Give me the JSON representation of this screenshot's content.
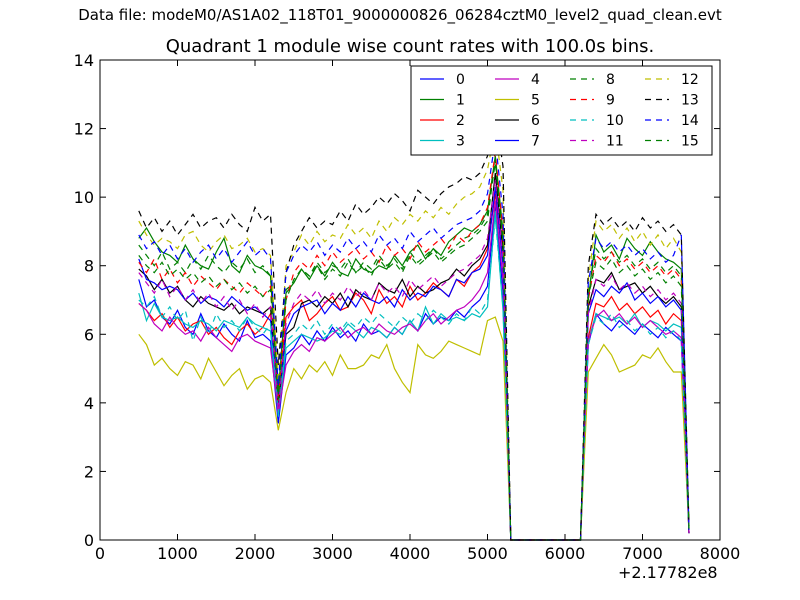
{
  "suptitle": "Data file: modeM0/AS1A02_118T01_9000000826_06284cztM0_level2_quad_clean.evt",
  "chart_data": {
    "type": "line",
    "title": "Quadrant 1 module wise count rates with 100.0s bins.",
    "xlabel": "",
    "ylabel": "",
    "x_offset_label": "+2.17782e8",
    "xlim": [
      0,
      8000
    ],
    "ylim": [
      0,
      14
    ],
    "x_ticks": [
      0,
      1000,
      2000,
      3000,
      4000,
      5000,
      6000,
      7000,
      8000
    ],
    "y_ticks": [
      0,
      2,
      4,
      6,
      8,
      10,
      12,
      14
    ],
    "grid": false,
    "legend_position": "top-right",
    "legend_columns": 4,
    "x": [
      500,
      600,
      700,
      800,
      900,
      1000,
      1100,
      1200,
      1300,
      1400,
      1500,
      1600,
      1700,
      1800,
      1900,
      2000,
      2100,
      2200,
      2300,
      2400,
      2500,
      2600,
      2700,
      2800,
      2900,
      3000,
      3100,
      3200,
      3300,
      3400,
      3500,
      3600,
      3700,
      3800,
      3900,
      4000,
      4100,
      4200,
      4300,
      4400,
      4500,
      4600,
      4700,
      4800,
      4900,
      5000,
      5100,
      5200,
      5300,
      6200,
      6300,
      6400,
      6500,
      6600,
      6700,
      6800,
      6900,
      7000,
      7100,
      7200,
      7300,
      7400,
      7500,
      7600
    ],
    "series": [
      {
        "name": "0",
        "color": "#0000ff",
        "dash": "solid",
        "values": [
          7.6,
          6.8,
          7.0,
          6.5,
          6.3,
          6.7,
          6.2,
          6.0,
          6.6,
          6.1,
          5.9,
          6.3,
          6.0,
          5.8,
          6.4,
          5.9,
          6.0,
          5.8,
          3.4,
          5.4,
          5.6,
          6.0,
          5.7,
          6.1,
          5.8,
          6.2,
          5.9,
          6.1,
          5.8,
          6.3,
          6.0,
          6.1,
          5.9,
          6.2,
          6.0,
          6.4,
          6.1,
          6.6,
          6.3,
          6.5,
          6.4,
          6.7,
          6.5,
          6.8,
          7.0,
          7.4,
          9.8,
          7.2,
          0,
          0,
          5.7,
          6.6,
          6.3,
          6.1,
          6.4,
          6.2,
          6.0,
          6.3,
          6.1,
          5.9,
          6.2,
          6.0,
          5.8,
          0.2
        ]
      },
      {
        "name": "1",
        "color": "#008000",
        "dash": "solid",
        "values": [
          8.8,
          9.1,
          8.7,
          8.4,
          8.3,
          8.1,
          8.6,
          8.2,
          8.0,
          7.9,
          8.4,
          8.8,
          8.0,
          7.8,
          8.3,
          8.0,
          7.9,
          7.7,
          4.3,
          7.2,
          7.5,
          7.9,
          7.6,
          8.0,
          7.7,
          8.1,
          7.8,
          7.7,
          8.2,
          7.9,
          7.8,
          8.0,
          7.9,
          8.3,
          8.0,
          8.4,
          8.6,
          8.2,
          8.5,
          8.3,
          8.7,
          8.9,
          9.1,
          9.0,
          9.2,
          9.6,
          11.2,
          9.0,
          0,
          0,
          7.0,
          8.9,
          8.4,
          8.6,
          8.2,
          8.8,
          8.5,
          8.3,
          8.7,
          8.4,
          8.2,
          8.1,
          7.9,
          0.3
        ]
      },
      {
        "name": "2",
        "color": "#ff0000",
        "dash": "solid",
        "values": [
          6.9,
          6.7,
          6.4,
          6.6,
          6.2,
          6.5,
          6.1,
          6.3,
          6.4,
          6.0,
          6.2,
          5.9,
          5.7,
          6.1,
          6.3,
          6.0,
          6.2,
          6.6,
          3.9,
          6.5,
          6.8,
          7.0,
          6.4,
          6.6,
          6.9,
          7.1,
          6.7,
          6.8,
          7.2,
          7.0,
          6.6,
          7.3,
          6.9,
          7.1,
          6.8,
          7.4,
          7.0,
          7.2,
          7.5,
          7.3,
          7.1,
          7.6,
          7.4,
          7.8,
          8.0,
          8.5,
          10.1,
          8.1,
          0,
          0,
          5.9,
          6.9,
          6.8,
          7.1,
          6.7,
          6.9,
          6.6,
          6.8,
          6.5,
          6.7,
          6.3,
          6.6,
          6.4,
          0.2
        ]
      },
      {
        "name": "3",
        "color": "#00bfbf",
        "dash": "solid",
        "values": [
          7.2,
          6.4,
          6.9,
          6.5,
          6.4,
          6.5,
          6.3,
          6.2,
          6.4,
          6.3,
          6.1,
          6.4,
          6.3,
          6.2,
          6.5,
          6.3,
          6.2,
          6.1,
          3.6,
          5.6,
          5.8,
          6.0,
          5.9,
          5.8,
          5.9,
          6.1,
          6.0,
          6.3,
          6.1,
          5.9,
          6.2,
          6.1,
          5.9,
          6.2,
          6.0,
          6.4,
          6.1,
          6.8,
          6.3,
          6.6,
          6.4,
          6.5,
          6.4,
          6.6,
          6.5,
          6.8,
          9.6,
          6.7,
          0,
          0,
          5.8,
          6.6,
          6.5,
          6.4,
          6.5,
          6.3,
          6.6,
          6.2,
          6.4,
          6.3,
          6.1,
          6.3,
          6.2,
          0.2
        ]
      },
      {
        "name": "4",
        "color": "#bf00bf",
        "dash": "solid",
        "values": [
          6.9,
          6.7,
          6.3,
          6.1,
          6.5,
          6.2,
          6.0,
          6.1,
          5.8,
          6.2,
          5.9,
          5.7,
          5.5,
          5.9,
          6.0,
          5.8,
          5.7,
          5.6,
          3.7,
          5.1,
          5.5,
          5.7,
          5.5,
          5.9,
          5.8,
          6.0,
          6.2,
          5.9,
          6.1,
          6.2,
          6.0,
          6.3,
          6.1,
          6.0,
          6.2,
          6.3,
          6.1,
          6.4,
          6.6,
          6.3,
          6.5,
          6.7,
          6.8,
          7.0,
          7.3,
          7.8,
          9.9,
          7.6,
          0,
          0,
          5.8,
          6.5,
          6.7,
          6.4,
          6.6,
          6.3,
          6.5,
          6.2,
          6.4,
          6.2,
          6.0,
          6.1,
          5.9,
          0.2
        ]
      },
      {
        "name": "5",
        "color": "#bfbf00",
        "dash": "solid",
        "values": [
          6.0,
          5.7,
          5.1,
          5.3,
          5.0,
          4.8,
          5.2,
          5.1,
          4.7,
          5.3,
          4.9,
          4.5,
          4.8,
          5.0,
          4.4,
          4.7,
          4.8,
          4.6,
          3.2,
          4.3,
          5.0,
          4.7,
          5.1,
          4.9,
          5.2,
          4.8,
          5.4,
          5.0,
          5.0,
          5.1,
          5.4,
          5.3,
          5.7,
          5.0,
          4.6,
          4.3,
          5.7,
          5.4,
          5.3,
          5.5,
          5.8,
          5.7,
          5.6,
          5.5,
          5.4,
          6.4,
          6.5,
          5.8,
          0,
          0,
          4.9,
          5.3,
          5.7,
          5.4,
          4.9,
          5.0,
          5.1,
          5.4,
          5.3,
          5.6,
          5.2,
          4.9,
          4.9,
          0.2
        ]
      },
      {
        "name": "6",
        "color": "#000000",
        "dash": "solid",
        "values": [
          7.9,
          7.7,
          7.3,
          7.6,
          7.2,
          7.4,
          7.0,
          6.8,
          7.1,
          6.9,
          6.8,
          6.7,
          6.9,
          6.6,
          6.8,
          6.7,
          6.6,
          6.8,
          3.9,
          6.0,
          6.2,
          6.9,
          7.0,
          6.8,
          7.1,
          6.9,
          7.2,
          6.8,
          7.3,
          7.1,
          7.0,
          7.5,
          7.3,
          7.2,
          7.6,
          7.1,
          7.4,
          7.2,
          7.3,
          7.5,
          7.6,
          7.9,
          7.7,
          8.0,
          8.2,
          8.6,
          10.7,
          8.4,
          0,
          0,
          6.8,
          7.6,
          7.5,
          7.8,
          7.3,
          7.4,
          7.5,
          7.2,
          7.4,
          7.1,
          6.9,
          7.1,
          6.8,
          0.2
        ]
      },
      {
        "name": "7",
        "color": "#0000ff",
        "dash": "solid",
        "values": [
          8.2,
          7.6,
          7.5,
          7.3,
          7.4,
          7.3,
          7.0,
          7.2,
          6.9,
          7.1,
          7.0,
          6.8,
          7.1,
          6.9,
          6.7,
          6.8,
          6.6,
          6.4,
          4.1,
          6.1,
          6.6,
          6.8,
          6.9,
          7.0,
          6.6,
          6.9,
          6.7,
          7.1,
          6.8,
          7.2,
          7.0,
          6.9,
          7.1,
          6.8,
          7.3,
          7.0,
          7.2,
          7.1,
          7.4,
          7.3,
          7.1,
          7.6,
          7.5,
          7.8,
          7.9,
          8.3,
          10.3,
          8.0,
          0,
          0,
          6.6,
          7.3,
          7.1,
          7.4,
          7.2,
          7.5,
          7.0,
          7.2,
          6.9,
          7.1,
          6.8,
          7.0,
          6.7,
          0.2
        ]
      },
      {
        "name": "8",
        "color": "#008000",
        "dash": "dashed",
        "values": [
          8.6,
          8.3,
          8.0,
          8.4,
          7.9,
          8.1,
          7.8,
          8.2,
          7.9,
          8.3,
          8.0,
          7.8,
          8.1,
          7.9,
          8.2,
          7.8,
          8.0,
          7.7,
          4.2,
          7.3,
          7.5,
          7.9,
          7.7,
          8.1,
          7.8,
          8.0,
          7.9,
          8.2,
          7.8,
          8.1,
          7.9,
          8.3,
          8.0,
          8.2,
          7.9,
          8.4,
          8.1,
          8.3,
          8.5,
          8.2,
          8.4,
          8.6,
          8.8,
          8.9,
          9.1,
          9.5,
          11.0,
          8.8,
          0,
          0,
          7.2,
          8.5,
          8.2,
          8.4,
          8.1,
          8.3,
          8.0,
          8.2,
          7.9,
          8.1,
          7.8,
          8.0,
          7.7,
          0.3
        ]
      },
      {
        "name": "9",
        "color": "#ff0000",
        "dash": "dashed",
        "values": [
          8.1,
          7.8,
          8.2,
          7.6,
          7.9,
          7.5,
          7.8,
          7.4,
          7.7,
          7.5,
          7.3,
          7.6,
          7.4,
          7.2,
          7.5,
          7.3,
          7.1,
          7.4,
          4.0,
          7.0,
          7.8,
          8.1,
          7.9,
          8.3,
          8.0,
          8.4,
          8.1,
          8.3,
          8.5,
          8.2,
          8.4,
          8.1,
          8.6,
          8.3,
          8.5,
          8.2,
          8.7,
          8.4,
          8.6,
          8.8,
          8.5,
          8.9,
          8.7,
          9.0,
          9.2,
          9.7,
          11.3,
          9.0,
          0,
          0,
          7.0,
          8.3,
          8.1,
          8.4,
          8.0,
          8.2,
          7.9,
          8.1,
          7.8,
          8.0,
          7.7,
          7.9,
          7.6,
          0.3
        ]
      },
      {
        "name": "10",
        "color": "#00bfbf",
        "dash": "dashed",
        "values": [
          7.0,
          6.8,
          7.1,
          6.5,
          6.8,
          6.4,
          6.7,
          5.8,
          6.5,
          6.0,
          6.6,
          6.2,
          6.4,
          6.1,
          6.5,
          6.2,
          6.0,
          6.3,
          3.7,
          5.8,
          6.0,
          6.3,
          6.1,
          6.4,
          6.0,
          6.3,
          6.1,
          6.4,
          6.2,
          6.5,
          6.3,
          6.6,
          6.4,
          6.2,
          6.5,
          6.3,
          6.6,
          6.4,
          6.7,
          6.5,
          6.3,
          6.6,
          6.4,
          6.8,
          6.6,
          7.0,
          9.4,
          6.8,
          0,
          0,
          5.7,
          6.5,
          6.3,
          6.6,
          6.2,
          6.4,
          6.1,
          6.3,
          6.0,
          6.2,
          5.9,
          6.1,
          5.8,
          0.2
        ]
      },
      {
        "name": "11",
        "color": "#bf00bf",
        "dash": "dashed",
        "values": [
          7.8,
          7.5,
          7.2,
          7.6,
          7.1,
          7.4,
          7.0,
          7.3,
          6.9,
          7.2,
          6.8,
          7.1,
          6.7,
          7.0,
          6.6,
          6.9,
          6.5,
          6.8,
          3.8,
          6.3,
          6.9,
          7.2,
          7.0,
          7.3,
          6.9,
          7.2,
          7.0,
          7.4,
          7.1,
          7.3,
          7.0,
          7.5,
          7.2,
          7.4,
          7.1,
          7.6,
          7.3,
          7.5,
          7.7,
          7.4,
          7.6,
          7.8,
          7.9,
          8.1,
          8.3,
          8.8,
          10.5,
          8.2,
          0,
          0,
          6.6,
          7.6,
          7.4,
          7.7,
          7.3,
          7.5,
          7.2,
          7.4,
          7.1,
          7.3,
          7.0,
          7.2,
          6.9,
          0.2
        ]
      },
      {
        "name": "12",
        "color": "#bfbf00",
        "dash": "dashed",
        "values": [
          9.3,
          8.9,
          8.6,
          8.8,
          8.7,
          8.5,
          8.9,
          9.0,
          8.6,
          8.4,
          8.7,
          8.9,
          8.5,
          8.6,
          8.8,
          8.4,
          8.5,
          8.3,
          4.6,
          8.0,
          8.4,
          8.9,
          8.6,
          9.0,
          8.7,
          8.9,
          8.8,
          9.2,
          8.9,
          9.1,
          8.8,
          9.3,
          9.0,
          9.4,
          9.2,
          9.5,
          9.3,
          9.6,
          9.4,
          9.7,
          9.5,
          9.8,
          10.0,
          10.1,
          10.3,
          10.8,
          12.0,
          10.2,
          0,
          0,
          7.6,
          9.3,
          9.0,
          9.2,
          8.8,
          9.1,
          8.7,
          9.0,
          8.6,
          8.9,
          8.5,
          8.8,
          8.4,
          0.4
        ]
      },
      {
        "name": "13",
        "color": "#000000",
        "dash": "dashed",
        "values": [
          9.6,
          9.1,
          9.4,
          9.0,
          9.3,
          8.9,
          9.2,
          9.5,
          9.1,
          9.3,
          9.4,
          9.1,
          9.5,
          9.2,
          9.0,
          9.7,
          9.3,
          9.5,
          5.1,
          7.8,
          8.6,
          9.0,
          9.4,
          9.1,
          9.3,
          9.2,
          9.6,
          9.3,
          9.8,
          9.5,
          9.7,
          10.0,
          9.8,
          10.1,
          9.9,
          9.6,
          10.2,
          10.0,
          9.8,
          10.1,
          10.3,
          10.4,
          10.6,
          10.5,
          10.7,
          11.2,
          12.5,
          10.9,
          0,
          0,
          8.0,
          9.5,
          9.2,
          9.4,
          9.1,
          9.3,
          9.0,
          9.4,
          9.1,
          9.3,
          9.0,
          9.2,
          8.9,
          0.4
        ]
      },
      {
        "name": "14",
        "color": "#0000ff",
        "dash": "dashed",
        "values": [
          8.9,
          8.5,
          8.7,
          8.3,
          8.6,
          8.2,
          8.5,
          8.1,
          8.4,
          8.6,
          8.2,
          8.5,
          8.1,
          8.4,
          8.7,
          8.3,
          8.5,
          8.2,
          4.5,
          7.8,
          8.3,
          8.6,
          8.4,
          8.7,
          8.3,
          8.6,
          8.4,
          8.8,
          8.5,
          8.7,
          8.4,
          8.9,
          8.6,
          8.8,
          8.5,
          9.0,
          8.7,
          8.9,
          9.1,
          8.8,
          9.0,
          9.2,
          9.3,
          9.4,
          9.6,
          10.1,
          11.7,
          9.5,
          0,
          0,
          7.5,
          8.8,
          8.5,
          8.7,
          8.4,
          8.6,
          8.3,
          8.5,
          8.2,
          8.4,
          8.1,
          8.3,
          8.9,
          0.3
        ]
      },
      {
        "name": "15",
        "color": "#008000",
        "dash": "dashed",
        "values": [
          8.3,
          8.0,
          7.8,
          8.1,
          7.7,
          7.9,
          7.6,
          7.8,
          7.5,
          7.7,
          7.4,
          7.6,
          7.3,
          7.5,
          7.2,
          7.4,
          7.1,
          7.3,
          4.1,
          7.0,
          7.6,
          7.9,
          7.7,
          8.0,
          7.6,
          7.9,
          7.7,
          8.1,
          7.8,
          8.0,
          7.7,
          8.2,
          7.9,
          8.1,
          7.8,
          8.3,
          8.0,
          8.2,
          8.4,
          8.1,
          8.3,
          8.5,
          8.6,
          8.8,
          9.0,
          9.3,
          11.1,
          8.7,
          0,
          0,
          7.1,
          8.1,
          7.9,
          8.2,
          7.8,
          8.0,
          7.7,
          7.9,
          7.6,
          7.8,
          7.5,
          7.7,
          7.4,
          0.3
        ]
      }
    ]
  }
}
